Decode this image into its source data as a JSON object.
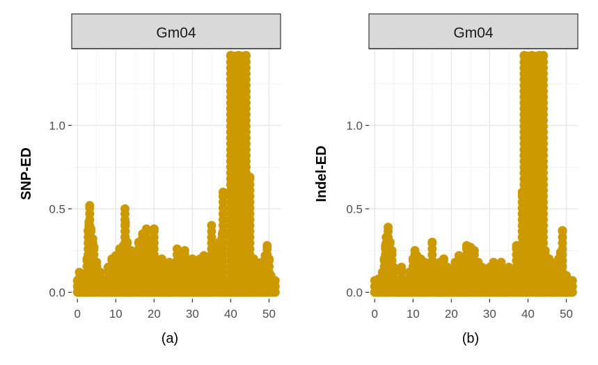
{
  "chart_data": [
    {
      "type": "scatter",
      "panel_label": "(a)",
      "strip_title": "Gm04",
      "xlabel": "",
      "ylabel": "SNP-ED",
      "xlim": [
        -1.5,
        53
      ],
      "ylim": [
        -0.04,
        1.46
      ],
      "x_ticks": [
        0,
        10,
        20,
        30,
        40,
        50
      ],
      "x_tick_labels": [
        "0",
        "10",
        "20",
        "30",
        "40",
        "50"
      ],
      "y_ticks": [
        0.0,
        0.5,
        1.0
      ],
      "y_tick_labels": [
        "0.0",
        "0.5",
        "1.0"
      ],
      "point_color": "#CC9A00",
      "grid": true,
      "series": [
        {
          "name": "SNP-ED",
          "points": [
            [
              0.5,
              0.12
            ],
            [
              1.0,
              0.08
            ],
            [
              2.0,
              0.1
            ],
            [
              2.5,
              0.2
            ],
            [
              2.8,
              0.37
            ],
            [
              3.0,
              0.42
            ],
            [
              3.2,
              0.52
            ],
            [
              3.5,
              0.38
            ],
            [
              4.0,
              0.32
            ],
            [
              4.3,
              0.27
            ],
            [
              5.0,
              0.18
            ],
            [
              6.0,
              0.12
            ],
            [
              8.0,
              0.15
            ],
            [
              9.0,
              0.2
            ],
            [
              10.0,
              0.22
            ],
            [
              11.0,
              0.26
            ],
            [
              12.0,
              0.28
            ],
            [
              12.4,
              0.5
            ],
            [
              12.5,
              0.42
            ],
            [
              13.0,
              0.3
            ],
            [
              14.0,
              0.25
            ],
            [
              15.0,
              0.22
            ],
            [
              16.0,
              0.3
            ],
            [
              17.0,
              0.35
            ],
            [
              18.0,
              0.38
            ],
            [
              18.5,
              0.3
            ],
            [
              20.0,
              0.38
            ],
            [
              21.0,
              0.15
            ],
            [
              22.0,
              0.2
            ],
            [
              23.0,
              0.12
            ],
            [
              24.0,
              0.18
            ],
            [
              25.0,
              0.15
            ],
            [
              26.0,
              0.26
            ],
            [
              27.0,
              0.22
            ],
            [
              28.0,
              0.25
            ],
            [
              29.0,
              0.15
            ],
            [
              30.0,
              0.2
            ],
            [
              31.0,
              0.18
            ],
            [
              32.0,
              0.2
            ],
            [
              33.0,
              0.22
            ],
            [
              34.0,
              0.2
            ],
            [
              35.0,
              0.4
            ],
            [
              36.0,
              0.28
            ],
            [
              37.0,
              0.3
            ],
            [
              37.8,
              0.35
            ],
            [
              38.0,
              0.6
            ],
            [
              40.0,
              1.42
            ],
            [
              42.0,
              1.42
            ],
            [
              44.0,
              1.42
            ],
            [
              41.0,
              1.3
            ],
            [
              43.0,
              1.2
            ],
            [
              42.5,
              0.9
            ],
            [
              44.3,
              0.68
            ],
            [
              45.0,
              0.69
            ],
            [
              44.0,
              0.4
            ],
            [
              45.5,
              0.12
            ],
            [
              46.0,
              0.2
            ],
            [
              47.0,
              0.15
            ],
            [
              48.0,
              0.18
            ],
            [
              49.0,
              0.22
            ],
            [
              49.5,
              0.28
            ],
            [
              50.0,
              0.2
            ],
            [
              50.5,
              0.1
            ],
            [
              51.0,
              0.06
            ],
            [
              51.5,
              0.04
            ]
          ]
        }
      ]
    },
    {
      "type": "scatter",
      "panel_label": "(b)",
      "strip_title": "Gm04",
      "xlabel": "",
      "ylabel": "Indel-ED",
      "xlim": [
        -1.5,
        53
      ],
      "ylim": [
        -0.04,
        1.46
      ],
      "x_ticks": [
        0,
        10,
        20,
        30,
        40,
        50
      ],
      "x_tick_labels": [
        "0",
        "10",
        "20",
        "30",
        "40",
        "50"
      ],
      "y_ticks": [
        0.0,
        0.5,
        1.0
      ],
      "y_tick_labels": [
        "0.0",
        "0.5",
        "1.0"
      ],
      "point_color": "#CC9A00",
      "grid": true,
      "series": [
        {
          "name": "Indel-ED",
          "points": [
            [
              0.5,
              0.05
            ],
            [
              1.0,
              0.08
            ],
            [
              2.0,
              0.12
            ],
            [
              2.5,
              0.2
            ],
            [
              2.8,
              0.28
            ],
            [
              3.0,
              0.33
            ],
            [
              3.5,
              0.39
            ],
            [
              4.0,
              0.3
            ],
            [
              4.5,
              0.25
            ],
            [
              5.0,
              0.15
            ],
            [
              7.0,
              0.15
            ],
            [
              9.0,
              0.12
            ],
            [
              10.0,
              0.2
            ],
            [
              10.5,
              0.25
            ],
            [
              11.0,
              0.22
            ],
            [
              12.0,
              0.2
            ],
            [
              13.0,
              0.18
            ],
            [
              14.0,
              0.12
            ],
            [
              15.0,
              0.3
            ],
            [
              16.0,
              0.15
            ],
            [
              17.0,
              0.18
            ],
            [
              18.0,
              0.2
            ],
            [
              19.0,
              0.15
            ],
            [
              20.0,
              0.14
            ],
            [
              21.0,
              0.18
            ],
            [
              22.0,
              0.22
            ],
            [
              23.0,
              0.2
            ],
            [
              24.0,
              0.28
            ],
            [
              25.0,
              0.27
            ],
            [
              26.0,
              0.25
            ],
            [
              27.0,
              0.18
            ],
            [
              28.0,
              0.15
            ],
            [
              29.0,
              0.1
            ],
            [
              30.0,
              0.15
            ],
            [
              31.0,
              0.18
            ],
            [
              32.0,
              0.14
            ],
            [
              33.0,
              0.18
            ],
            [
              34.0,
              0.12
            ],
            [
              35.0,
              0.15
            ],
            [
              36.0,
              0.12
            ],
            [
              37.0,
              0.28
            ],
            [
              37.5,
              0.25
            ],
            [
              38.5,
              0.6
            ],
            [
              39.0,
              1.42
            ],
            [
              41.0,
              1.42
            ],
            [
              43.0,
              1.42
            ],
            [
              44.0,
              1.42
            ],
            [
              40.0,
              1.3
            ],
            [
              42.0,
              1.1
            ],
            [
              43.5,
              0.95
            ],
            [
              40.5,
              0.5
            ],
            [
              42.5,
              0.3
            ],
            [
              44.5,
              0.25
            ],
            [
              45.5,
              0.2
            ],
            [
              46.0,
              0.18
            ],
            [
              47.0,
              0.14
            ],
            [
              48.0,
              0.2
            ],
            [
              48.5,
              0.24
            ],
            [
              49.0,
              0.37
            ],
            [
              50.0,
              0.1
            ],
            [
              50.5,
              0.07
            ],
            [
              51.0,
              0.05
            ]
          ]
        }
      ]
    }
  ]
}
